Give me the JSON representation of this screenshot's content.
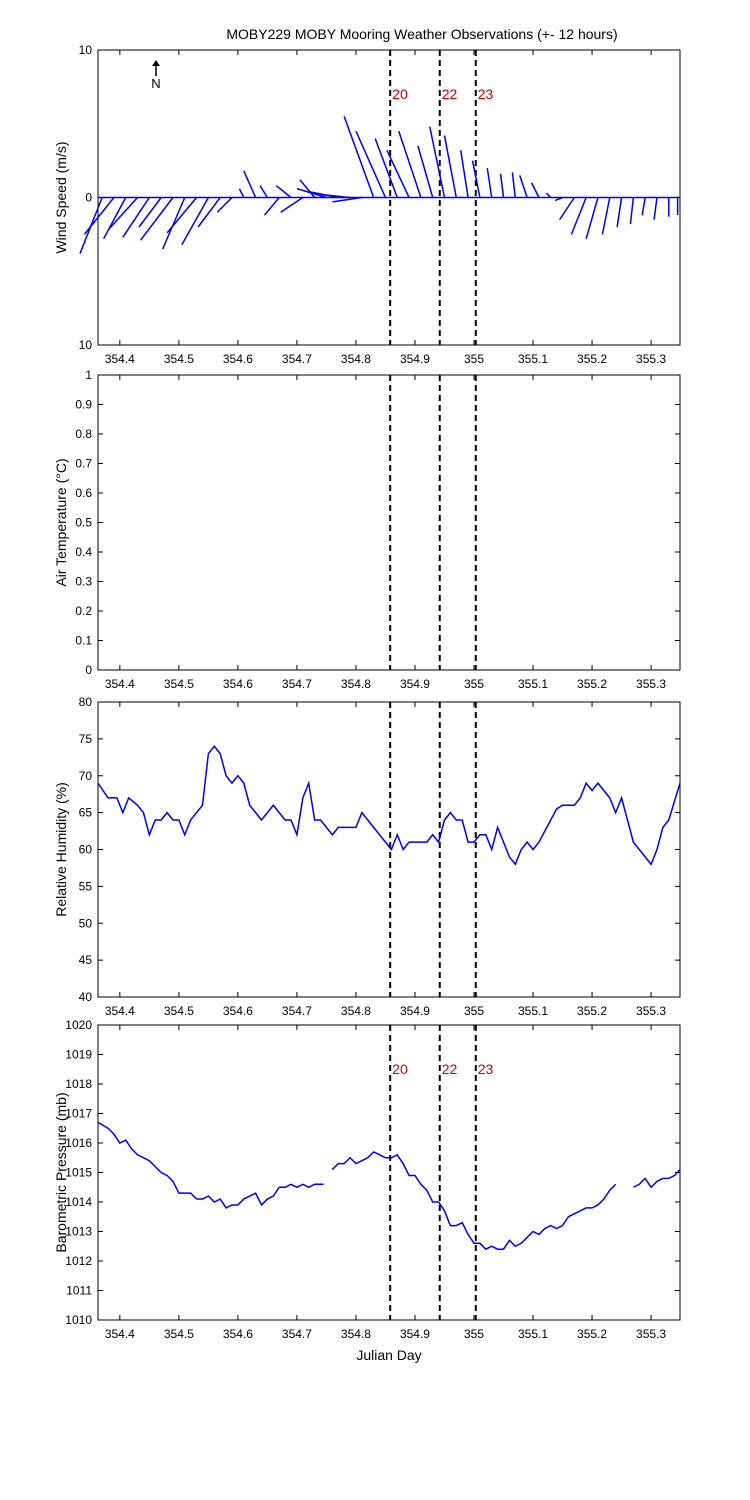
{
  "chart_data": [
    {
      "type": "stick",
      "title": "MOBY229 MOBY Mooring Weather Observations (+- 12 hours)",
      "ylabel": "Wind Speed (m/s)",
      "north_label": "N",
      "xlim": [
        354.363,
        355.349
      ],
      "xticks": [
        354.4,
        354.5,
        354.6,
        354.7,
        354.8,
        354.9,
        355,
        355.1,
        355.2,
        355.3
      ],
      "ylim": [
        -10,
        10
      ],
      "yticks": [
        {
          "value": -10,
          "label": "10"
        },
        0,
        10
      ],
      "vlines": [
        354.858,
        354.942,
        355.003
      ],
      "vline_labels": [
        "20",
        "22",
        "23"
      ],
      "vline_color": "#cc0000",
      "color": "#0000ee",
      "x": [
        354.37,
        354.39,
        354.41,
        354.43,
        354.45,
        354.47,
        354.49,
        354.51,
        354.53,
        354.55,
        354.57,
        354.59,
        354.61,
        354.63,
        354.65,
        354.67,
        354.69,
        354.71,
        354.73,
        354.75,
        354.77,
        354.79,
        354.81,
        354.83,
        354.85,
        354.87,
        354.89,
        354.91,
        354.93,
        354.95,
        354.97,
        354.99,
        355.01,
        355.03,
        355.05,
        355.07,
        355.09,
        355.11,
        355.13,
        355.15,
        355.17,
        355.19,
        355.21,
        355.23,
        355.25,
        355.27,
        355.29,
        355.31,
        355.33,
        355.345
      ],
      "u": [
        -1.5,
        -2,
        -1.5,
        -2,
        -1.8,
        -1.5,
        -2.2,
        -1.5,
        -2,
        -1.8,
        -1.5,
        -1,
        -0.3,
        -0.8,
        -0.5,
        -1,
        -1,
        -1.5,
        -1,
        -2,
        -2,
        -2,
        -2,
        -2,
        -2,
        -1.5,
        -1.5,
        -1.5,
        -1,
        -1,
        -0.8,
        -0.5,
        -0.5,
        -0.3,
        -0.2,
        -0.2,
        -0.5,
        -0.5,
        -0.3,
        -0.5,
        -1,
        -1,
        -0.8,
        -0.5,
        -0.3,
        -0.2,
        -0.2,
        -0.2,
        0,
        0
      ],
      "v": [
        -3.8,
        -2.5,
        -2.8,
        -2.2,
        -2.7,
        -2,
        -2.9,
        -3.5,
        -2.4,
        -3.2,
        -2,
        -1,
        0.6,
        1.8,
        0.8,
        -1.2,
        0.8,
        -1,
        1.2,
        0.6,
        0.4,
        0.2,
        -0.3,
        5.5,
        4.5,
        4,
        3.2,
        4.5,
        3.5,
        4.8,
        4.2,
        3.2,
        2.5,
        2,
        1.6,
        1.7,
        1.5,
        1,
        0.3,
        -0.2,
        -1.5,
        -2.5,
        -2.8,
        -2.5,
        -2,
        -1.8,
        -1.2,
        -1.5,
        -1.3,
        -1.2
      ]
    },
    {
      "type": "line",
      "ylabel": "Air Temperature (°C)",
      "xlim": [
        354.363,
        355.349
      ],
      "xticks": [
        354.4,
        354.5,
        354.6,
        354.7,
        354.8,
        354.9,
        355,
        355.1,
        355.2,
        355.3
      ],
      "ylim": [
        0,
        1
      ],
      "yticks": [
        0,
        0.1,
        0.2,
        0.3,
        0.4,
        0.5,
        0.6,
        0.7,
        0.8,
        0.9,
        1
      ],
      "vlines": [
        354.858,
        354.942,
        355.003
      ]
    },
    {
      "type": "line",
      "ylabel": "Relative Humidity (%)",
      "xlim": [
        354.363,
        355.349
      ],
      "xticks": [
        354.4,
        354.5,
        354.6,
        354.7,
        354.8,
        354.9,
        355,
        355.1,
        355.2,
        355.3
      ],
      "ylim": [
        40,
        80
      ],
      "yticks": [
        40,
        45,
        50,
        55,
        60,
        65,
        70,
        75,
        80
      ],
      "vlines": [
        354.858,
        354.942,
        355.003
      ],
      "color": "#0000ee",
      "x": [
        354.363,
        354.38,
        354.395,
        354.405,
        354.415,
        354.43,
        354.44,
        354.45,
        354.46,
        354.47,
        354.48,
        354.49,
        354.5,
        354.51,
        354.52,
        354.54,
        354.55,
        354.56,
        354.57,
        354.58,
        354.59,
        354.6,
        354.61,
        354.62,
        354.64,
        354.66,
        354.68,
        354.69,
        354.7,
        354.71,
        354.72,
        354.73,
        354.74,
        354.76,
        354.77,
        354.79,
        354.8,
        354.81,
        354.83,
        354.85,
        354.86,
        354.87,
        354.88,
        354.89,
        354.92,
        354.93,
        354.94,
        354.95,
        354.96,
        354.97,
        354.98,
        354.99,
        355,
        355.01,
        355.02,
        355.03,
        355.04,
        355.05,
        355.06,
        355.07,
        355.08,
        355.09,
        355.1,
        355.11,
        355.13,
        355.14,
        355.15,
        355.17,
        355.18,
        355.19,
        355.2,
        355.21,
        355.23,
        355.24,
        355.25,
        355.26,
        355.27,
        355.28,
        355.29,
        355.3,
        355.31,
        355.32,
        355.33,
        355.349
      ],
      "values": [
        69,
        67,
        67,
        65,
        67,
        66,
        65,
        62,
        64,
        64,
        65,
        64,
        64,
        62,
        64,
        66,
        73,
        74,
        73,
        70,
        69,
        70,
        69,
        66,
        64,
        66,
        64,
        64,
        62,
        67,
        69,
        64,
        64,
        62,
        63,
        63,
        63,
        65,
        63,
        61,
        60,
        62,
        60,
        61,
        61,
        62,
        61,
        64,
        65,
        64,
        64,
        61,
        61,
        62,
        62,
        60,
        63,
        61,
        59,
        58,
        60,
        61,
        60,
        61,
        64,
        65.5,
        66,
        66,
        67,
        69,
        68,
        69,
        67,
        65,
        67,
        64,
        61,
        60,
        59,
        58,
        60,
        63,
        64,
        69
      ]
    },
    {
      "type": "line",
      "ylabel": "Barometric Pressure (mb)",
      "xlabel": "Julian Day",
      "xlim": [
        354.363,
        355.349
      ],
      "xticks": [
        354.4,
        354.5,
        354.6,
        354.7,
        354.8,
        354.9,
        355,
        355.1,
        355.2,
        355.3
      ],
      "ylim": [
        1010,
        1020
      ],
      "yticks": [
        1010,
        1011,
        1012,
        1013,
        1014,
        1015,
        1016,
        1017,
        1018,
        1019,
        1020
      ],
      "vlines": [
        354.858,
        354.942,
        355.003
      ],
      "vline_labels": [
        "20",
        "22",
        "23"
      ],
      "vline_color": "#cc0000",
      "color": "#0000ee",
      "x": [
        354.363,
        354.38,
        354.39,
        354.4,
        354.41,
        354.42,
        354.43,
        354.45,
        354.46,
        354.47,
        354.48,
        354.49,
        354.5,
        354.52,
        354.53,
        354.54,
        354.55,
        354.56,
        354.57,
        354.58,
        354.59,
        354.6,
        354.61,
        354.62,
        354.63,
        354.64,
        354.65,
        354.66,
        354.67,
        354.68,
        354.69,
        354.7,
        354.71,
        354.72,
        354.73,
        354.745,
        354.75,
        354.76,
        354.77,
        354.78,
        354.79,
        354.8,
        354.81,
        354.82,
        354.83,
        354.84,
        354.85,
        354.86,
        354.87,
        354.88,
        354.89,
        354.9,
        354.91,
        354.92,
        354.93,
        354.94,
        354.95,
        354.96,
        354.97,
        354.98,
        354.99,
        355,
        355.01,
        355.02,
        355.03,
        355.04,
        355.05,
        355.06,
        355.07,
        355.08,
        355.09,
        355.1,
        355.11,
        355.12,
        355.13,
        355.14,
        355.15,
        355.16,
        355.17,
        355.18,
        355.19,
        355.2,
        355.21,
        355.22,
        355.23,
        355.24,
        355.255,
        355.27,
        355.28,
        355.29,
        355.3,
        355.31,
        355.32,
        355.33,
        355.34,
        355.349
      ],
      "values": [
        1016.7,
        1016.5,
        1016.3,
        1016.0,
        1016.1,
        1015.8,
        1015.6,
        1015.4,
        1015.2,
        1015.0,
        1014.9,
        1014.7,
        1014.3,
        1014.3,
        1014.1,
        1014.1,
        1014.2,
        1014.0,
        1014.1,
        1013.8,
        1013.9,
        1013.9,
        1014.1,
        1014.2,
        1014.3,
        1013.9,
        1014.1,
        1014.2,
        1014.5,
        1014.5,
        1014.6,
        1014.5,
        1014.6,
        1014.5,
        1014.6,
        1014.6,
        null,
        1015.1,
        1015.3,
        1015.3,
        1015.5,
        1015.3,
        1015.4,
        1015.5,
        1015.7,
        1015.6,
        1015.5,
        1015.5,
        1015.6,
        1015.3,
        1014.9,
        1014.9,
        1014.6,
        1014.4,
        1014.0,
        1014.0,
        1013.7,
        1013.2,
        1013.2,
        1013.3,
        1012.9,
        1012.6,
        1012.6,
        1012.4,
        1012.5,
        1012.4,
        1012.4,
        1012.7,
        1012.5,
        1012.6,
        1012.8,
        1013.0,
        1012.9,
        1013.1,
        1013.2,
        1013.1,
        1013.2,
        1013.5,
        1013.6,
        1013.7,
        1013.8,
        1013.8,
        1013.9,
        1014.1,
        1014.4,
        1014.6,
        null,
        1014.5,
        1014.6,
        1014.8,
        1014.5,
        1014.7,
        1014.8,
        1014.8,
        1014.9,
        1015.1
      ]
    }
  ]
}
